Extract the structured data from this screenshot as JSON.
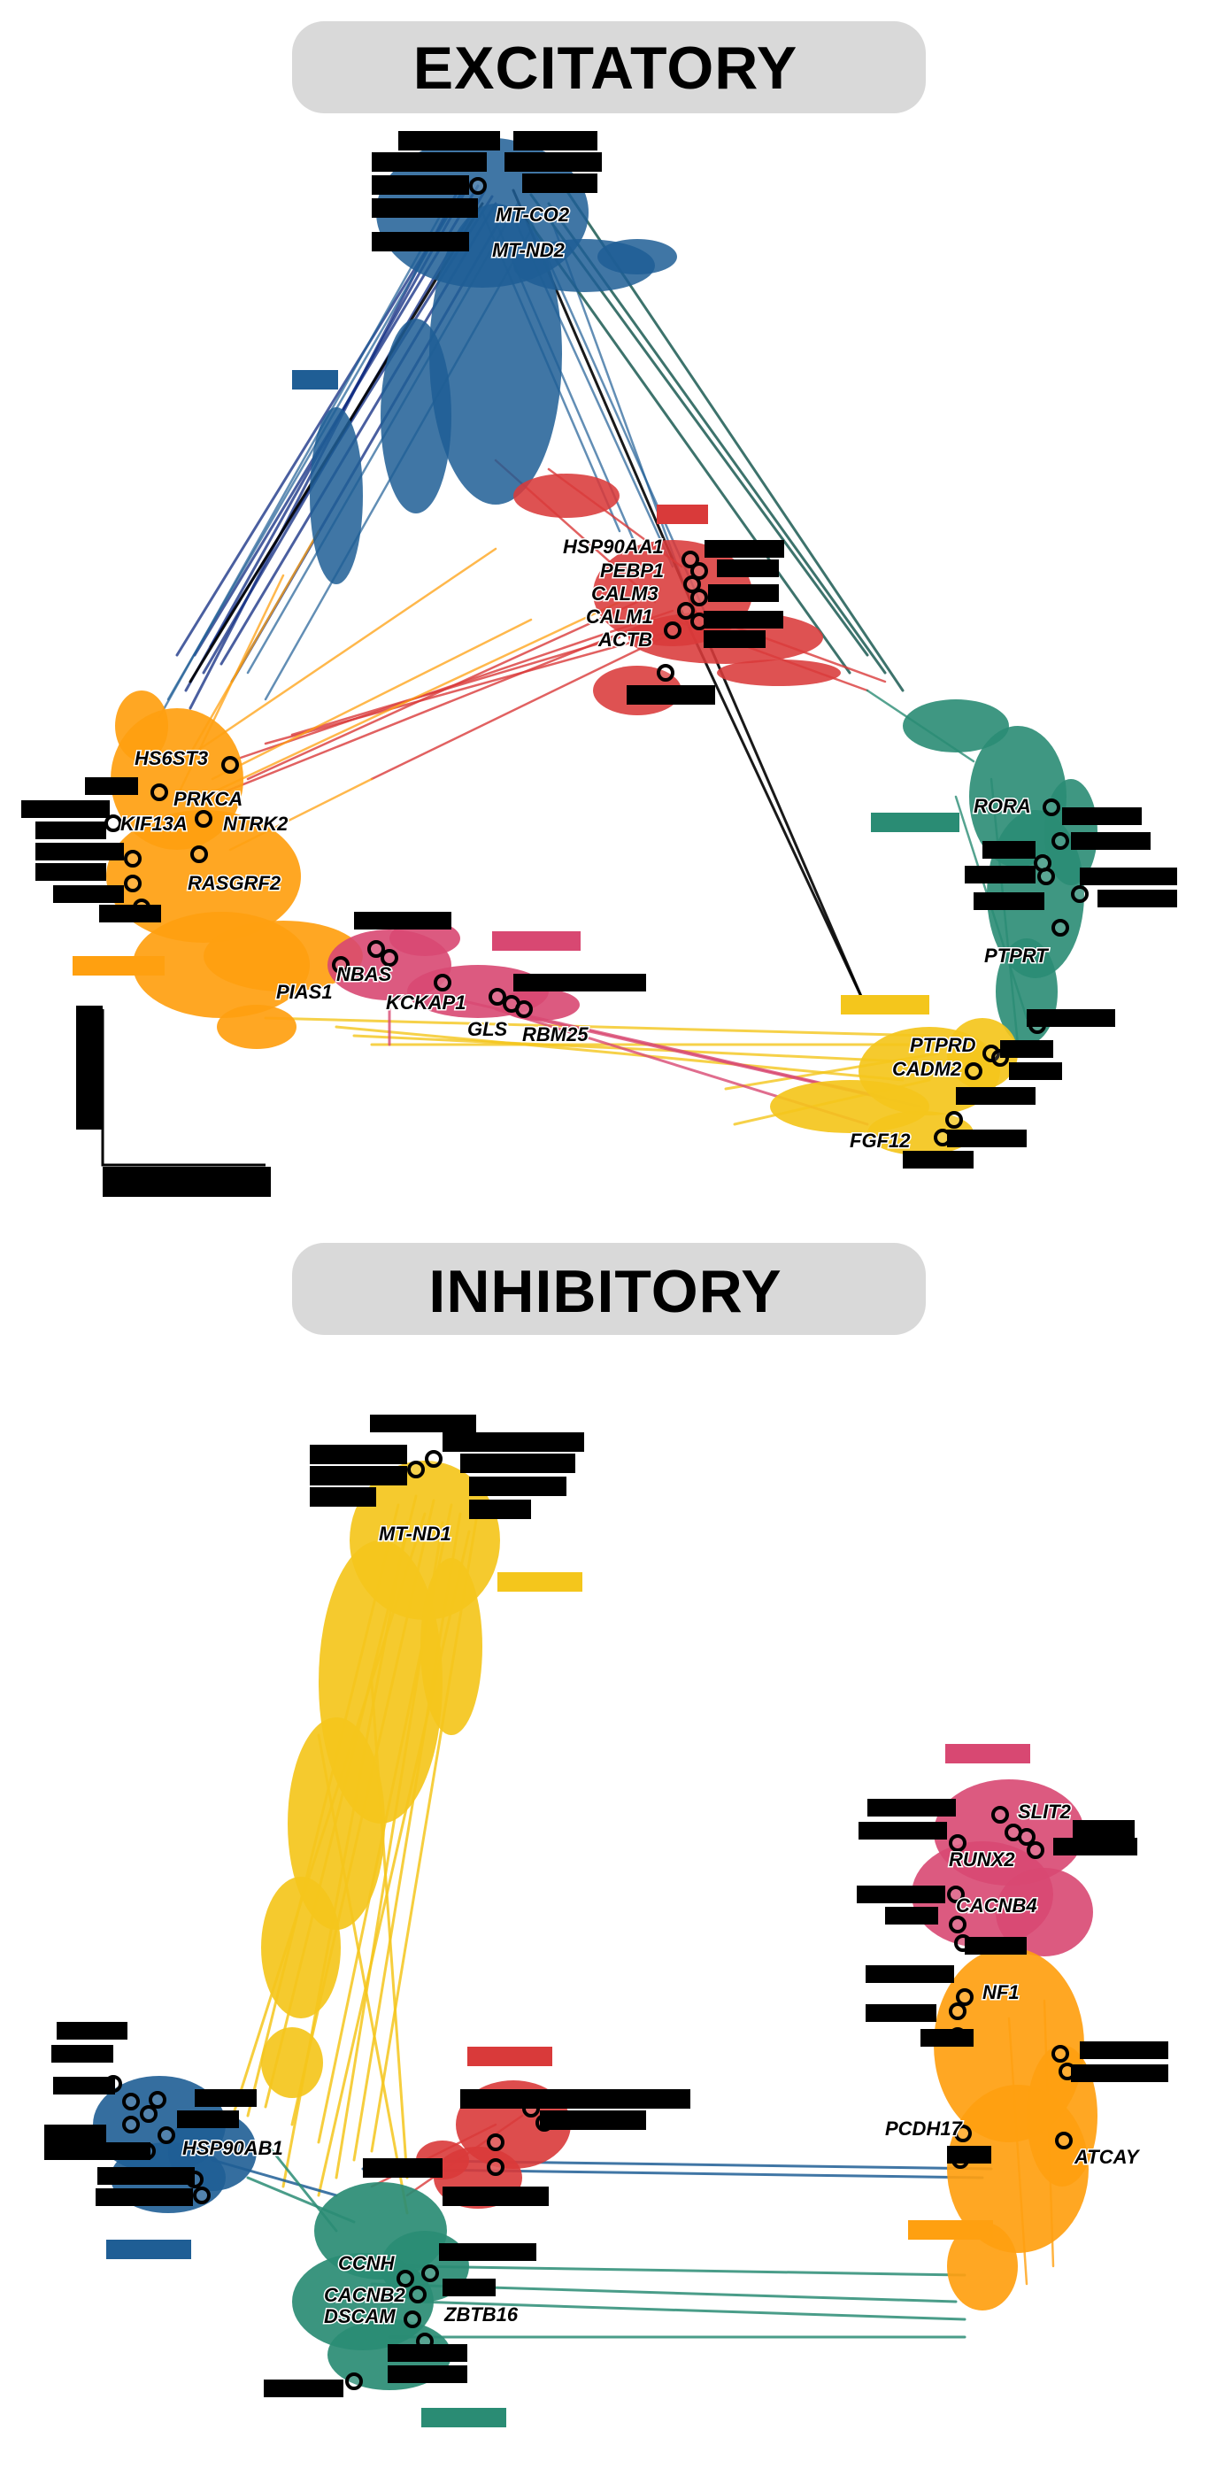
{
  "colors": {
    "blue": "#1f5e95",
    "navy": "#0d2a80",
    "red": "#d93a3a",
    "teal": "#2a8c74",
    "orange": "#ffa010",
    "pink": "#d84872",
    "yellow": "#f4c61c",
    "title_bg": "#d9d9d9"
  },
  "panels": {
    "excitatory": {
      "title": "EXCITATORY",
      "modules": [
        {
          "color": "blue"
        },
        {
          "color": "red"
        },
        {
          "color": "teal"
        },
        {
          "color": "orange"
        },
        {
          "color": "pink"
        },
        {
          "color": "yellow"
        }
      ],
      "genes": [
        "MT-CO2",
        "MT-ND2",
        "HSP90AA1",
        "PEBP1",
        "CALM3",
        "CALM1",
        "ACTB",
        "RORA",
        "PTPRT",
        "PTPRD",
        "CADM2",
        "FGF12",
        "HS6ST3",
        "PRKCA",
        "KIF13A",
        "NTRK2",
        "RASGRF2",
        "NBAS",
        "PIAS1",
        "KCKAP1",
        "GLS",
        "RBM25"
      ]
    },
    "inhibitory": {
      "title": "INHIBITORY",
      "modules": [
        {
          "color": "yellow"
        },
        {
          "color": "pink"
        },
        {
          "color": "orange"
        },
        {
          "color": "red"
        },
        {
          "color": "blue"
        },
        {
          "color": "teal"
        }
      ],
      "genes": [
        "MT-ND1",
        "SLIT2",
        "RUNX2",
        "CACNB4",
        "NF1",
        "PCDH17",
        "CCNH",
        "CACNB2",
        "DSCAM",
        "ZBTB16",
        "ATCAY",
        "HSP90AB1"
      ]
    }
  }
}
